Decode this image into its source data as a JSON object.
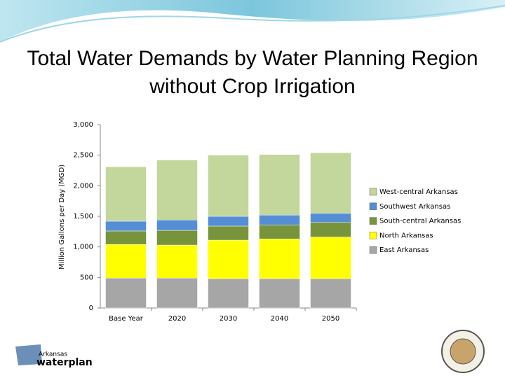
{
  "chart_data": {
    "type": "stacked_bar",
    "title": "Total Water Demands by Water Planning Region without Crop Irrigation",
    "y_label": "Million Gallons per Day (MGD)",
    "categories": [
      "Base Year",
      "2020",
      "2030",
      "2040",
      "2050"
    ],
    "series": [
      {
        "name": "East Arkansas",
        "color": "#a6a6a6",
        "values": [
          490,
          490,
          480,
          480,
          480
        ]
      },
      {
        "name": "North Arkansas",
        "color": "#ffff00",
        "values": [
          550,
          540,
          630,
          650,
          680
        ]
      },
      {
        "name": "South-central Arkansas",
        "color": "#77933c",
        "values": [
          220,
          240,
          230,
          230,
          240
        ]
      },
      {
        "name": "Southwest Arkansas",
        "color": "#558ed5",
        "values": [
          160,
          170,
          160,
          160,
          150
        ]
      },
      {
        "name": "West-central Arkansas",
        "color": "#c3d69b",
        "values": [
          890,
          980,
          1000,
          990,
          990
        ]
      }
    ],
    "ylim": [
      0,
      3000
    ],
    "yticks": [
      0,
      500,
      {
        "value": 1000,
        "label": "1,000"
      },
      {
        "value": 1500,
        "label": "1,500"
      },
      {
        "value": 2000,
        "label": "2,000"
      },
      {
        "value": 2500,
        "label": "2,500"
      },
      {
        "value": 3000,
        "label": "3,000"
      }
    ]
  },
  "logo": {
    "line1": "Arkansas",
    "line2": "waterplan"
  }
}
